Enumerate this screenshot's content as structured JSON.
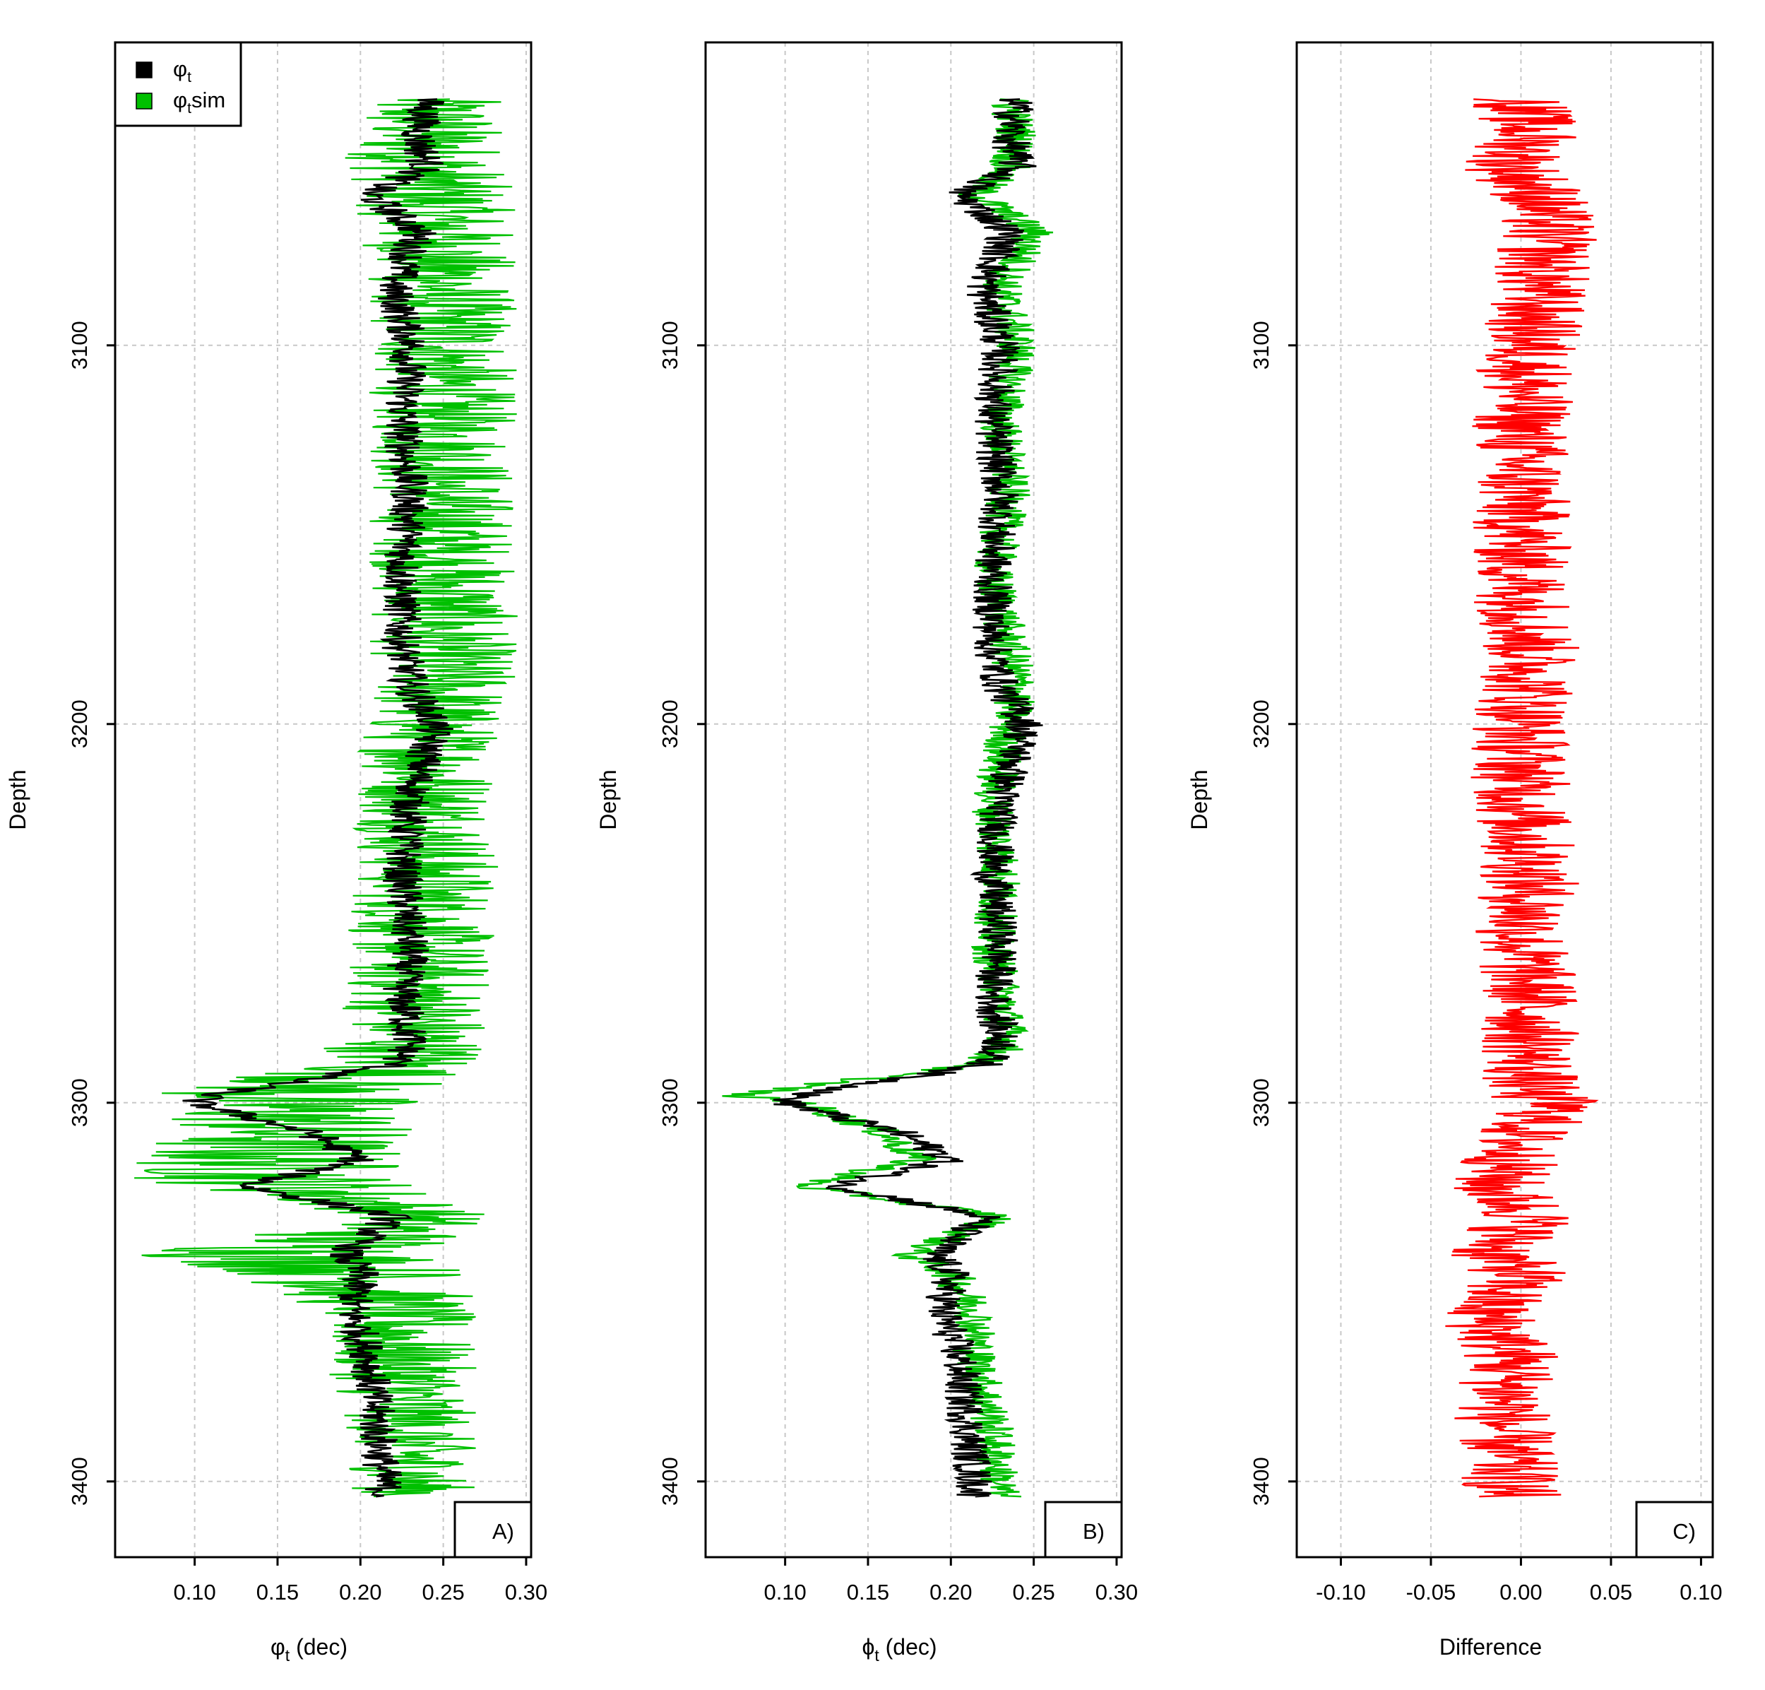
{
  "chart_data": [
    {
      "id": "A",
      "type": "line",
      "panel_label": "A)",
      "xlabel_main": "φ",
      "xlabel_sub": "t",
      "xlabel_rest": " (dec)",
      "ylabel": "Depth",
      "xlim": [
        0.052,
        0.303
      ],
      "ylim": [
        3420,
        3020
      ],
      "xticks": [
        "0.10",
        "0.15",
        "0.20",
        "0.25",
        "0.30"
      ],
      "xtick_values": [
        0.1,
        0.15,
        0.2,
        0.25,
        0.3
      ],
      "yticks": [
        "3100",
        "3200",
        "3300",
        "3400"
      ],
      "ytick_values": [
        3100,
        3200,
        3300,
        3400
      ],
      "legend": {
        "position": "top-left",
        "entries": [
          {
            "symbol": "φ",
            "sub": "t",
            "suffix": "",
            "color": "#000000"
          },
          {
            "symbol": "φ",
            "sub": "t",
            "suffix": "sim",
            "color": "#00c000"
          }
        ]
      },
      "series": [
        {
          "name": "φt sim",
          "color": "#00c000",
          "role": "band",
          "depth": [
            3035,
            3050,
            3070,
            3100,
            3150,
            3190,
            3200,
            3240,
            3260,
            3280,
            3290,
            3298,
            3305,
            3312,
            3320,
            3330,
            3340,
            3345,
            3355,
            3370,
            3385,
            3404
          ],
          "min": [
            0.195,
            0.19,
            0.2,
            0.205,
            0.205,
            0.205,
            0.2,
            0.195,
            0.19,
            0.188,
            0.17,
            0.06,
            0.08,
            0.06,
            0.06,
            0.2,
            0.06,
            0.12,
            0.17,
            0.18,
            0.19,
            0.195
          ],
          "max": [
            0.285,
            0.29,
            0.295,
            0.295,
            0.295,
            0.295,
            0.285,
            0.285,
            0.28,
            0.28,
            0.28,
            0.24,
            0.24,
            0.23,
            0.23,
            0.28,
            0.26,
            0.27,
            0.27,
            0.27,
            0.27,
            0.27
          ]
        },
        {
          "name": "φt",
          "color": "#000000",
          "role": "line",
          "depth": [
            3035,
            3045,
            3053,
            3060,
            3070,
            3085,
            3100,
            3120,
            3140,
            3160,
            3180,
            3190,
            3200,
            3220,
            3240,
            3260,
            3270,
            3285,
            3290,
            3298,
            3300,
            3308,
            3315,
            3322,
            3330,
            3340,
            3345,
            3355,
            3367,
            3385,
            3404
          ],
          "values": [
            0.24,
            0.235,
            0.24,
            0.205,
            0.235,
            0.22,
            0.23,
            0.225,
            0.23,
            0.225,
            0.225,
            0.23,
            0.245,
            0.23,
            0.225,
            0.23,
            0.225,
            0.23,
            0.22,
            0.11,
            0.1,
            0.17,
            0.2,
            0.13,
            0.22,
            0.19,
            0.2,
            0.195,
            0.205,
            0.21,
            0.215
          ]
        }
      ]
    },
    {
      "id": "B",
      "type": "line",
      "panel_label": "B)",
      "xlabel_main": "ϕ",
      "xlabel_sub": "t",
      "xlabel_rest": " (dec)",
      "ylabel": "Depth",
      "xlim": [
        0.052,
        0.303
      ],
      "ylim": [
        3420,
        3020
      ],
      "xticks": [
        "0.10",
        "0.15",
        "0.20",
        "0.25",
        "0.30"
      ],
      "xtick_values": [
        0.1,
        0.15,
        0.2,
        0.25,
        0.3
      ],
      "yticks": [
        "3100",
        "3200",
        "3300",
        "3400"
      ],
      "ytick_values": [
        3100,
        3200,
        3300,
        3400
      ],
      "series": [
        {
          "name": "φt sim",
          "color": "#00c000",
          "role": "line",
          "depth": [
            3035,
            3045,
            3053,
            3060,
            3070,
            3085,
            3100,
            3120,
            3140,
            3160,
            3180,
            3190,
            3200,
            3220,
            3240,
            3260,
            3270,
            3285,
            3290,
            3298,
            3300,
            3308,
            3315,
            3322,
            3330,
            3340,
            3345,
            3355,
            3367,
            3385,
            3404
          ],
          "values": [
            0.235,
            0.24,
            0.235,
            0.215,
            0.25,
            0.23,
            0.24,
            0.23,
            0.235,
            0.225,
            0.235,
            0.24,
            0.235,
            0.225,
            0.23,
            0.225,
            0.23,
            0.235,
            0.215,
            0.07,
            0.11,
            0.16,
            0.18,
            0.11,
            0.23,
            0.175,
            0.2,
            0.215,
            0.215,
            0.225,
            0.23
          ]
        },
        {
          "name": "φt",
          "color": "#000000",
          "role": "line",
          "depth": [
            3035,
            3045,
            3053,
            3060,
            3070,
            3085,
            3100,
            3120,
            3140,
            3160,
            3180,
            3190,
            3200,
            3220,
            3240,
            3260,
            3270,
            3285,
            3290,
            3298,
            3300,
            3308,
            3315,
            3322,
            3330,
            3340,
            3345,
            3355,
            3367,
            3385,
            3404
          ],
          "values": [
            0.24,
            0.235,
            0.24,
            0.205,
            0.235,
            0.22,
            0.23,
            0.225,
            0.23,
            0.225,
            0.225,
            0.23,
            0.245,
            0.23,
            0.225,
            0.23,
            0.225,
            0.23,
            0.22,
            0.11,
            0.1,
            0.17,
            0.2,
            0.13,
            0.22,
            0.19,
            0.2,
            0.195,
            0.205,
            0.21,
            0.215
          ]
        }
      ]
    },
    {
      "id": "C",
      "type": "line",
      "panel_label": "C)",
      "xlabel_main": "Difference",
      "xlabel_sub": "",
      "xlabel_rest": "",
      "ylabel": "Depth",
      "xlim": [
        -0.1245,
        0.1065
      ],
      "ylim": [
        3420,
        3020
      ],
      "xticks": [
        "-0.10",
        "-0.05",
        "0.00",
        "0.05",
        "0.10"
      ],
      "xtick_values": [
        -0.1,
        -0.05,
        0.0,
        0.05,
        0.1
      ],
      "yticks": [
        "3100",
        "3200",
        "3300",
        "3400"
      ],
      "ytick_values": [
        3100,
        3200,
        3300,
        3400
      ],
      "series": [
        {
          "name": "Difference",
          "color": "#ff0000",
          "role": "line",
          "depth": [
            3035,
            3045,
            3053,
            3060,
            3070,
            3085,
            3100,
            3120,
            3140,
            3160,
            3180,
            3190,
            3200,
            3220,
            3240,
            3260,
            3270,
            3285,
            3290,
            3298,
            3300,
            3308,
            3315,
            3322,
            3330,
            3340,
            3345,
            3355,
            3367,
            3385,
            3404
          ],
          "values": [
            0.0,
            0.005,
            -0.005,
            0.01,
            0.015,
            0.01,
            0.005,
            0.0,
            0.0,
            0.0,
            0.005,
            0.005,
            0.0,
            0.0,
            0.005,
            0.0,
            0.005,
            0.005,
            0.005,
            0.005,
            0.02,
            0.0,
            -0.005,
            -0.015,
            0.005,
            -0.015,
            0.0,
            -0.02,
            -0.005,
            -0.01,
            -0.005
          ]
        }
      ]
    }
  ]
}
